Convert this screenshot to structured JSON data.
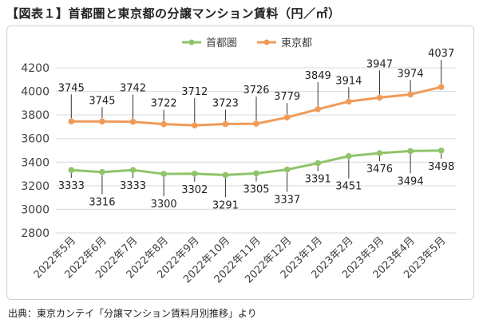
{
  "title": "【図表１】首都圏と東京都の分譲マンション賃料（円／㎡）",
  "source": "出典：東京カンテイ「分譲マンション賃料月別推移」より",
  "colors": {
    "shutoken": "#8fc46a",
    "tokyo": "#ef9b5a",
    "grid": "#d9d9d9",
    "text": "#404040"
  },
  "chart_data": {
    "type": "line",
    "title": "首都圏と東京都の分譲マンション賃料（円／㎡）",
    "xlabel": "",
    "ylabel": "",
    "ylim": [
      2800,
      4200
    ],
    "yticks": [
      2800,
      3000,
      3200,
      3400,
      3600,
      3800,
      4000,
      4200
    ],
    "grid": true,
    "legend": "top-center",
    "categories": [
      "2022年5月",
      "2022年6月",
      "2022年7月",
      "2022年8月",
      "2022年9月",
      "2022年10月",
      "2022年11月",
      "2022年12月",
      "2023年1月",
      "2023年2月",
      "2023年3月",
      "2023年4月",
      "2023年5月"
    ],
    "series": [
      {
        "name": "首都圏",
        "values": [
          3333,
          3316,
          3333,
          3300,
          3302,
          3291,
          3305,
          3337,
          3391,
          3451,
          3476,
          3494,
          3498
        ]
      },
      {
        "name": "東京都",
        "values": [
          3745,
          3745,
          3742,
          3722,
          3712,
          3723,
          3726,
          3779,
          3849,
          3914,
          3947,
          3974,
          4037
        ]
      }
    ]
  }
}
